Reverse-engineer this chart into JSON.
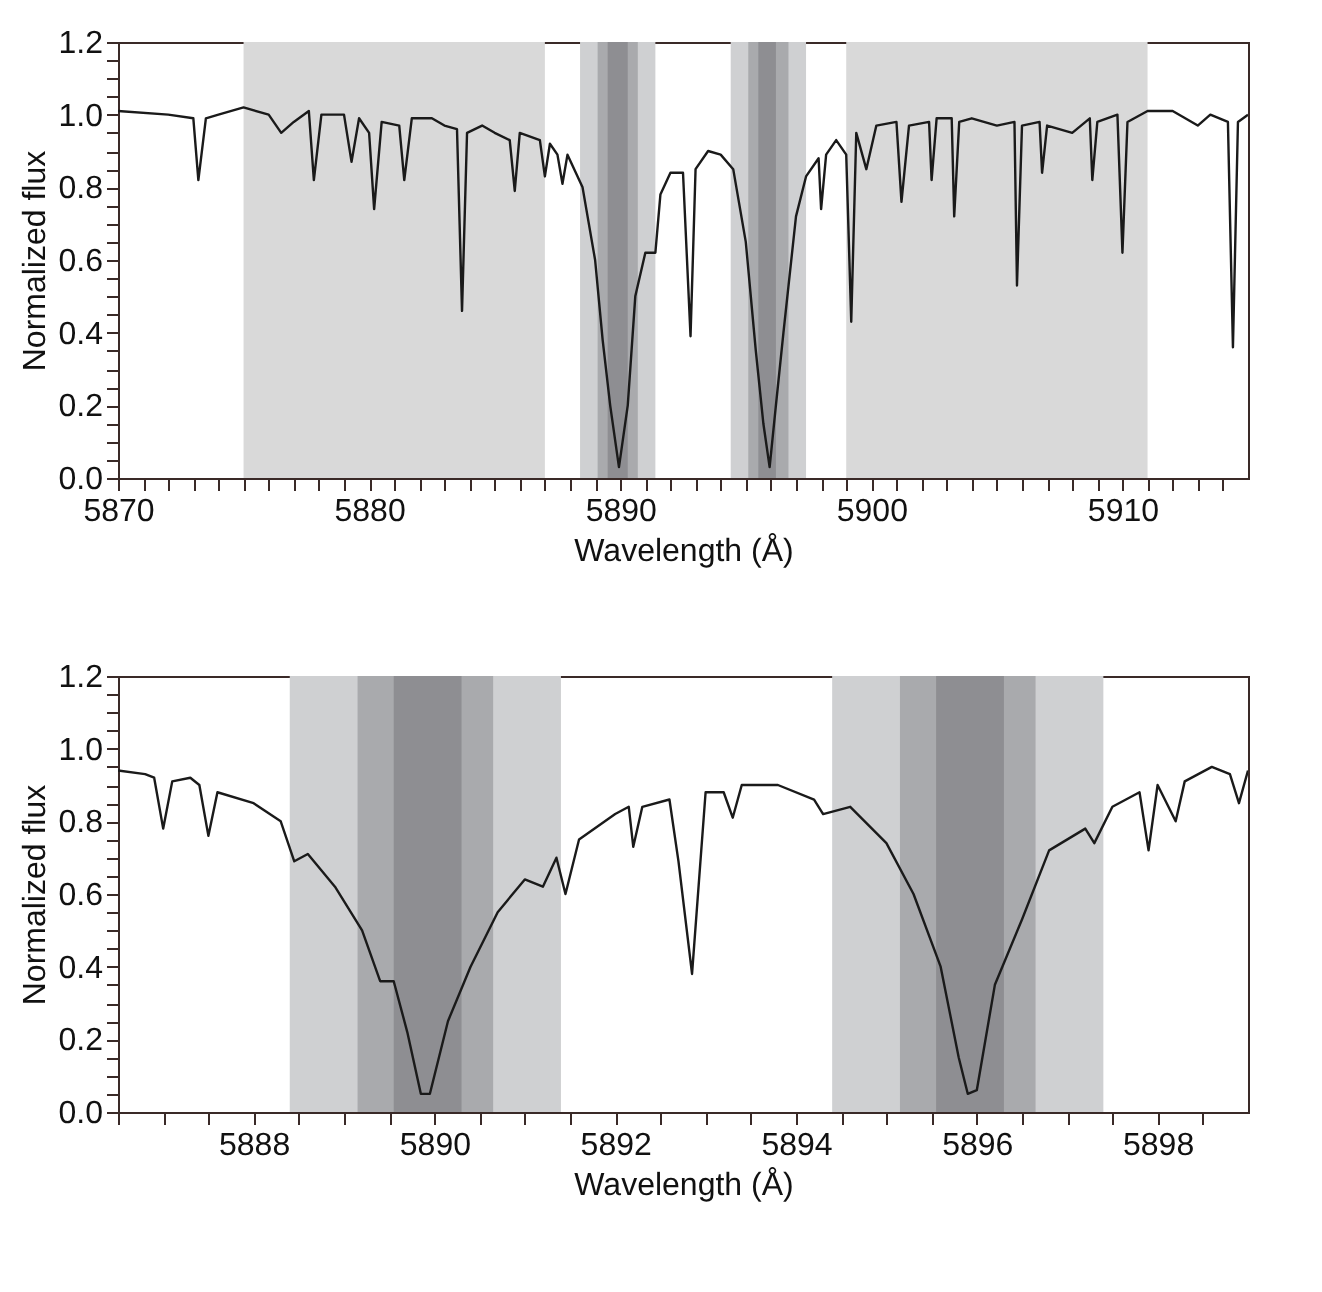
{
  "chart_data": [
    {
      "type": "line",
      "xlabel": "Wavelength (Å)",
      "ylabel": "Normalized flux",
      "xlim": [
        5870,
        5915
      ],
      "ylim": [
        0,
        1.2
      ],
      "xticks": [
        5870,
        {
          "value": 5871,
          "label": null
        },
        {
          "value": 5872,
          "label": null
        },
        {
          "value": 5873,
          "label": null
        },
        {
          "value": 5874,
          "label": null
        },
        {
          "value": 5875,
          "label": null
        },
        {
          "value": 5876,
          "label": null
        },
        {
          "value": 5877,
          "label": null
        },
        {
          "value": 5878,
          "label": null
        },
        {
          "value": 5879,
          "label": null
        },
        5880,
        {
          "value": 5881,
          "label": null
        },
        {
          "value": 5882,
          "label": null
        },
        {
          "value": 5883,
          "label": null
        },
        {
          "value": 5884,
          "label": null
        },
        {
          "value": 5885,
          "label": null
        },
        {
          "value": 5886,
          "label": null
        },
        {
          "value": 5887,
          "label": null
        },
        {
          "value": 5888,
          "label": null
        },
        {
          "value": 5889,
          "label": null
        },
        5890,
        {
          "value": 5891,
          "label": null
        },
        {
          "value": 5892,
          "label": null
        },
        {
          "value": 5893,
          "label": null
        },
        {
          "value": 5894,
          "label": null
        },
        {
          "value": 5895,
          "label": null
        },
        {
          "value": 5896,
          "label": null
        },
        {
          "value": 5897,
          "label": null
        },
        {
          "value": 5898,
          "label": null
        },
        {
          "value": 5899,
          "label": null
        },
        5900,
        {
          "value": 5901,
          "label": null
        },
        {
          "value": 5902,
          "label": null
        },
        {
          "value": 5903,
          "label": null
        },
        {
          "value": 5904,
          "label": null
        },
        {
          "value": 5905,
          "label": null
        },
        {
          "value": 5906,
          "label": null
        },
        {
          "value": 5907,
          "label": null
        },
        {
          "value": 5908,
          "label": null
        },
        {
          "value": 5909,
          "label": null
        },
        5910,
        {
          "value": 5911,
          "label": null
        },
        {
          "value": 5912,
          "label": null
        },
        {
          "value": 5913,
          "label": null
        },
        {
          "value": 5914,
          "label": null
        }
      ],
      "yticks": [
        {
          "value": 0,
          "label": "0.0"
        },
        {
          "value": 0.05,
          "label": null
        },
        {
          "value": 0.1,
          "label": null
        },
        {
          "value": 0.15,
          "label": null
        },
        0.2,
        {
          "value": 0.25,
          "label": null
        },
        {
          "value": 0.3,
          "label": null
        },
        {
          "value": 0.35,
          "label": null
        },
        0.4,
        {
          "value": 0.45,
          "label": null
        },
        {
          "value": 0.5,
          "label": null
        },
        {
          "value": 0.55,
          "label": null
        },
        0.6,
        {
          "value": 0.65,
          "label": null
        },
        {
          "value": 0.7,
          "label": null
        },
        {
          "value": 0.75,
          "label": null
        },
        0.8,
        {
          "value": 0.85,
          "label": null
        },
        {
          "value": 0.9,
          "label": null
        },
        {
          "value": 0.95,
          "label": null
        },
        {
          "value": 1,
          "label": "1.0"
        },
        {
          "value": 1.05,
          "label": null
        },
        {
          "value": 1.1,
          "label": null
        },
        {
          "value": 1.15,
          "label": null
        },
        1.2
      ],
      "grid": false,
      "bands": [
        {
          "axis": "x",
          "from": 5875,
          "to": 5887,
          "color": "#d9d9d9"
        },
        {
          "axis": "x",
          "from": 5888.4,
          "to": 5891.4,
          "color": "#cfd0d2"
        },
        {
          "axis": "x",
          "from": 5889.1,
          "to": 5890.7,
          "color": "#a9aaad"
        },
        {
          "axis": "x",
          "from": 5889.5,
          "to": 5890.3,
          "color": "#8e8e92"
        },
        {
          "axis": "x",
          "from": 5894.4,
          "to": 5897.4,
          "color": "#cfd0d2"
        },
        {
          "axis": "x",
          "from": 5895.1,
          "to": 5896.7,
          "color": "#a9aaad"
        },
        {
          "axis": "x",
          "from": 5895.5,
          "to": 5896.2,
          "color": "#8e8e92"
        },
        {
          "axis": "x",
          "from": 5899,
          "to": 5911,
          "color": "#d9d9d9"
        }
      ],
      "series": [
        {
          "color": "#1a1a1a",
          "x": [
            5870,
            5872,
            5873.0,
            5873.2,
            5873.5,
            5874,
            5875,
            5876,
            5876.5,
            5877,
            5877.6,
            5877.8,
            5878.1,
            5879,
            5879.3,
            5879.6,
            5880.0,
            5880.2,
            5880.5,
            5881.2,
            5881.4,
            5881.7,
            5882.5,
            5883,
            5883.5,
            5883.7,
            5883.9,
            5884.5,
            5885,
            5885.6,
            5885.8,
            5886,
            5886.8,
            5887.0,
            5887.2,
            5887.5,
            5887.7,
            5887.9,
            5888.5,
            5889.0,
            5889.3,
            5889.6,
            5889.95,
            5890.3,
            5890.6,
            5891.0,
            5891.4,
            5891.6,
            5892.0,
            5892.5,
            5892.8,
            5893.0,
            5893.5,
            5894,
            5894.5,
            5895.0,
            5895.4,
            5895.7,
            5895.95,
            5896.2,
            5896.5,
            5897,
            5897.4,
            5897.9,
            5898.0,
            5898.2,
            5898.6,
            5899.0,
            5899.2,
            5899.4,
            5899.8,
            5900.2,
            5901,
            5901.2,
            5901.5,
            5902.3,
            5902.4,
            5902.6,
            5903.2,
            5903.3,
            5903.5,
            5904,
            5905,
            5905.7,
            5905.8,
            5906,
            5906.7,
            5906.8,
            5907,
            5908,
            5908.7,
            5908.8,
            5909,
            5909.8,
            5910,
            5910.2,
            5911,
            5912,
            5913,
            5913.5,
            5914.2,
            5914.4,
            5914.6,
            5915
          ],
          "values": [
            1.01,
            1.0,
            0.99,
            0.82,
            0.99,
            1.0,
            1.02,
            1.0,
            0.95,
            0.98,
            1.01,
            0.82,
            1.0,
            1.0,
            0.87,
            0.99,
            0.95,
            0.74,
            0.98,
            0.97,
            0.82,
            0.99,
            0.99,
            0.97,
            0.96,
            0.46,
            0.95,
            0.97,
            0.95,
            0.93,
            0.79,
            0.95,
            0.93,
            0.83,
            0.92,
            0.89,
            0.81,
            0.89,
            0.8,
            0.6,
            0.38,
            0.2,
            0.03,
            0.2,
            0.5,
            0.62,
            0.62,
            0.78,
            0.84,
            0.84,
            0.39,
            0.85,
            0.9,
            0.89,
            0.85,
            0.65,
            0.35,
            0.15,
            0.03,
            0.2,
            0.4,
            0.72,
            0.83,
            0.88,
            0.74,
            0.89,
            0.93,
            0.89,
            0.43,
            0.95,
            0.85,
            0.97,
            0.98,
            0.76,
            0.97,
            0.98,
            0.82,
            0.99,
            0.99,
            0.72,
            0.98,
            0.99,
            0.97,
            0.98,
            0.53,
            0.97,
            0.98,
            0.84,
            0.97,
            0.95,
            0.99,
            0.82,
            0.98,
            1.0,
            0.62,
            0.98,
            1.01,
            1.01,
            0.97,
            1.0,
            0.98,
            0.36,
            0.98,
            1.0
          ]
        }
      ]
    },
    {
      "type": "line",
      "xlabel": "Wavelength (Å)",
      "ylabel": "Normalized flux",
      "xlim": [
        5886.5,
        5899
      ],
      "ylim": [
        0,
        1.2
      ],
      "xticks": [
        {
          "value": 5886.5,
          "label": null
        },
        {
          "value": 5887,
          "label": null
        },
        {
          "value": 5887.5,
          "label": null
        },
        5888,
        {
          "value": 5888.5,
          "label": null
        },
        {
          "value": 5889,
          "label": null
        },
        {
          "value": 5889.5,
          "label": null
        },
        5890,
        {
          "value": 5890.5,
          "label": null
        },
        {
          "value": 5891,
          "label": null
        },
        {
          "value": 5891.5,
          "label": null
        },
        5892,
        {
          "value": 5892.5,
          "label": null
        },
        {
          "value": 5893,
          "label": null
        },
        {
          "value": 5893.5,
          "label": null
        },
        5894,
        {
          "value": 5894.5,
          "label": null
        },
        {
          "value": 5895,
          "label": null
        },
        {
          "value": 5895.5,
          "label": null
        },
        5896,
        {
          "value": 5896.5,
          "label": null
        },
        {
          "value": 5897,
          "label": null
        },
        {
          "value": 5897.5,
          "label": null
        },
        5898,
        {
          "value": 5898.5,
          "label": null
        }
      ],
      "yticks": [
        {
          "value": 0,
          "label": "0.0"
        },
        {
          "value": 0.05,
          "label": null
        },
        {
          "value": 0.1,
          "label": null
        },
        {
          "value": 0.15,
          "label": null
        },
        0.2,
        {
          "value": 0.25,
          "label": null
        },
        {
          "value": 0.3,
          "label": null
        },
        {
          "value": 0.35,
          "label": null
        },
        0.4,
        {
          "value": 0.45,
          "label": null
        },
        {
          "value": 0.5,
          "label": null
        },
        {
          "value": 0.55,
          "label": null
        },
        0.6,
        {
          "value": 0.65,
          "label": null
        },
        {
          "value": 0.7,
          "label": null
        },
        {
          "value": 0.75,
          "label": null
        },
        0.8,
        {
          "value": 0.85,
          "label": null
        },
        {
          "value": 0.9,
          "label": null
        },
        {
          "value": 0.95,
          "label": null
        },
        {
          "value": 1,
          "label": "1.0"
        },
        {
          "value": 1.05,
          "label": null
        },
        {
          "value": 1.1,
          "label": null
        },
        {
          "value": 1.15,
          "label": null
        },
        1.2
      ],
      "grid": false,
      "bands": [
        {
          "axis": "x",
          "from": 5888.4,
          "to": 5891.4,
          "color": "#cfd0d2"
        },
        {
          "axis": "x",
          "from": 5889.15,
          "to": 5890.65,
          "color": "#a9aaad"
        },
        {
          "axis": "x",
          "from": 5889.55,
          "to": 5890.3,
          "color": "#8e8e92"
        },
        {
          "axis": "x",
          "from": 5894.4,
          "to": 5897.4,
          "color": "#cfd0d2"
        },
        {
          "axis": "x",
          "from": 5895.15,
          "to": 5896.65,
          "color": "#a9aaad"
        },
        {
          "axis": "x",
          "from": 5895.55,
          "to": 5896.3,
          "color": "#8e8e92"
        }
      ],
      "series": [
        {
          "color": "#1a1a1a",
          "x": [
            5886.5,
            5886.8,
            5886.9,
            5887.0,
            5887.1,
            5887.3,
            5887.4,
            5887.5,
            5887.6,
            5888.0,
            5888.3,
            5888.45,
            5888.6,
            5888.9,
            5889.2,
            5889.4,
            5889.55,
            5889.7,
            5889.85,
            5889.95,
            5890.15,
            5890.4,
            5890.7,
            5891.0,
            5891.2,
            5891.35,
            5891.45,
            5891.6,
            5892.0,
            5892.15,
            5892.2,
            5892.3,
            5892.6,
            5892.7,
            5892.85,
            5893.0,
            5893.2,
            5893.3,
            5893.4,
            5893.8,
            5894.2,
            5894.3,
            5894.6,
            5895.0,
            5895.3,
            5895.6,
            5895.8,
            5895.9,
            5896.0,
            5896.2,
            5896.5,
            5896.8,
            5897.2,
            5897.3,
            5897.5,
            5897.8,
            5897.9,
            5898.0,
            5898.2,
            5898.3,
            5898.6,
            5898.8,
            5898.9,
            5899.0
          ],
          "values": [
            0.94,
            0.93,
            0.92,
            0.78,
            0.91,
            0.92,
            0.9,
            0.76,
            0.88,
            0.85,
            0.8,
            0.69,
            0.71,
            0.62,
            0.5,
            0.36,
            0.36,
            0.22,
            0.05,
            0.05,
            0.25,
            0.4,
            0.55,
            0.64,
            0.62,
            0.7,
            0.6,
            0.75,
            0.82,
            0.84,
            0.73,
            0.84,
            0.86,
            0.69,
            0.38,
            0.88,
            0.88,
            0.81,
            0.9,
            0.9,
            0.86,
            0.82,
            0.84,
            0.74,
            0.6,
            0.4,
            0.15,
            0.05,
            0.06,
            0.35,
            0.53,
            0.72,
            0.78,
            0.74,
            0.84,
            0.88,
            0.72,
            0.9,
            0.8,
            0.91,
            0.95,
            0.93,
            0.85,
            0.94
          ]
        }
      ]
    }
  ]
}
